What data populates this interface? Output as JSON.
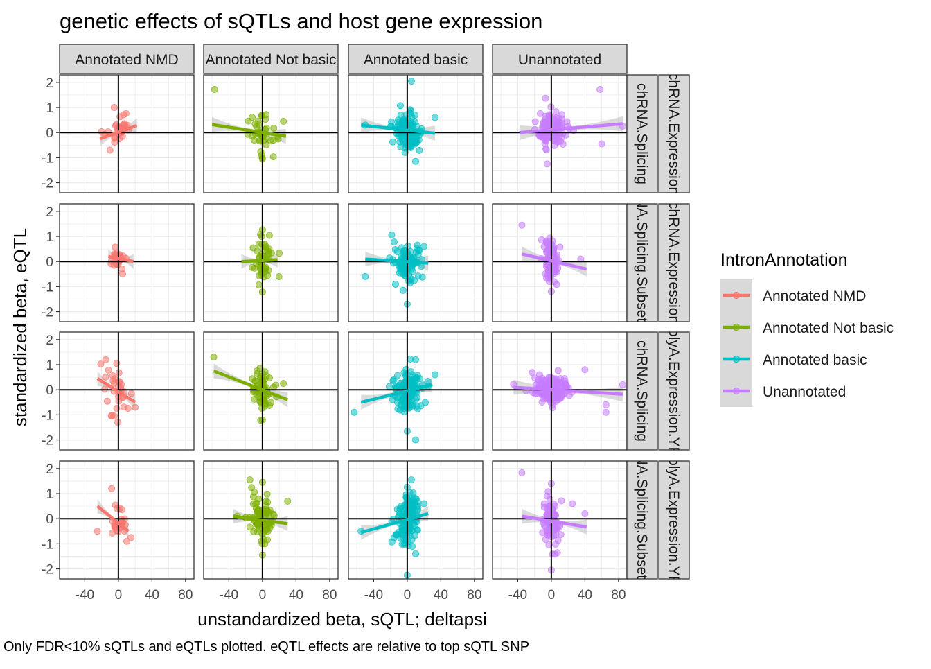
{
  "title": "genetic effects of sQTLs and host gene expression",
  "caption": "Only FDR<10% sQTLs and eQTLs plotted. eQTL effects are relative to top sQTL SNP",
  "xlabel": "unstandardized beta, sQTL; deltapsi",
  "ylabel": "standardized beta, eQTL",
  "legend": {
    "title": "IntronAnnotation",
    "items": [
      {
        "label": "Annotated NMD",
        "color": "#F8766D"
      },
      {
        "label": "Annotated Not basic",
        "color": "#7CAE00"
      },
      {
        "label": "Annotated basic",
        "color": "#00BFC4"
      },
      {
        "label": "Unannotated",
        "color": "#C77CFF"
      }
    ]
  },
  "chart_data": {
    "type": "scatter",
    "facet_columns": [
      "Annotated NMD",
      "Annotated Not basic",
      "Annotated basic",
      "Unannotated"
    ],
    "facet_rows": [
      {
        "strip1": "chRNA.Splicing",
        "strip2": "chRNA.Expression"
      },
      {
        "strip1": "chRNA.Splicing.Subset_YRI",
        "strip2": "chRNA.Expression"
      },
      {
        "strip1": "chRNA.Splicing",
        "strip2": "polyA.Expression.YRI"
      },
      {
        "strip1": "chRNA.Splicing.Subset_YRI",
        "strip2": "polyA.Expression.YRI"
      }
    ],
    "xlim": [
      -70,
      90
    ],
    "ylim": [
      -2.4,
      2.3
    ],
    "x_ticks": [
      -40,
      0,
      40,
      80
    ],
    "y_ticks": [
      -2,
      -1,
      0,
      1,
      2
    ],
    "grid": true,
    "legend_position": "right",
    "trend_lines": [
      [
        {
          "x": [
            -22,
            22
          ],
          "y": [
            -0.25,
            0.28
          ]
        },
        {
          "x": [
            -60,
            28
          ],
          "y": [
            0.32,
            -0.15
          ]
        },
        {
          "x": [
            -55,
            33
          ],
          "y": [
            0.3,
            -0.03
          ]
        },
        {
          "x": [
            -38,
            85
          ],
          "y": [
            0.0,
            0.35
          ]
        }
      ],
      [
        {
          "x": [
            -12,
            18
          ],
          "y": [
            0.2,
            0.0
          ]
        },
        {
          "x": [
            -25,
            18
          ],
          "y": [
            0.0,
            0.07
          ]
        },
        {
          "x": [
            -50,
            25
          ],
          "y": [
            0.1,
            -0.06
          ]
        },
        {
          "x": [
            -35,
            42
          ],
          "y": [
            0.3,
            -0.3
          ]
        }
      ],
      [
        {
          "x": [
            -25,
            20
          ],
          "y": [
            0.45,
            -0.5
          ]
        },
        {
          "x": [
            -58,
            30
          ],
          "y": [
            0.75,
            -0.4
          ]
        },
        {
          "x": [
            -55,
            30
          ],
          "y": [
            -0.5,
            0.2
          ]
        },
        {
          "x": [
            -45,
            85
          ],
          "y": [
            0.1,
            -0.18
          ]
        }
      ],
      [
        {
          "x": [
            -25,
            12
          ],
          "y": [
            0.5,
            -0.5
          ]
        },
        {
          "x": [
            -35,
            30
          ],
          "y": [
            0.1,
            -0.2
          ]
        },
        {
          "x": [
            -55,
            25
          ],
          "y": [
            -0.55,
            0.2
          ]
        },
        {
          "x": [
            -35,
            42
          ],
          "y": [
            0.1,
            -0.33
          ]
        }
      ]
    ],
    "scatter_spread": [
      [
        {
          "n": 30,
          "sx": 10,
          "sy": 0.35,
          "seed": 11,
          "extra": [
            [
              -5,
              1.0
            ],
            [
              -10,
              -0.7
            ]
          ]
        },
        {
          "n": 40,
          "sx": 10,
          "sy": 0.38,
          "seed": 12,
          "extra": [
            [
              -57,
              1.72
            ],
            [
              0,
              -1.05
            ],
            [
              25,
              0.45
            ]
          ]
        },
        {
          "n": 110,
          "sx": 11,
          "sy": 0.38,
          "seed": 13,
          "extra": [
            [
              5,
              2.05
            ],
            [
              -50,
              0.3
            ],
            [
              33,
              0.6
            ],
            [
              10,
              -1.15
            ]
          ]
        },
        {
          "n": 120,
          "sx": 12,
          "sy": 0.35,
          "seed": 14,
          "extra": [
            [
              58,
              1.72
            ],
            [
              -5,
              -1.25
            ],
            [
              85,
              0.25
            ],
            [
              60,
              -0.45
            ]
          ]
        }
      ],
      [
        {
          "n": 22,
          "sx": 6,
          "sy": 0.25,
          "seed": 21,
          "extra": [
            [
              5,
              -0.5
            ],
            [
              -5,
              -0.15
            ]
          ]
        },
        {
          "n": 45,
          "sx": 9,
          "sy": 0.42,
          "seed": 22,
          "extra": [
            [
              0,
              1.27
            ],
            [
              0,
              -1.22
            ],
            [
              20,
              0.33
            ]
          ]
        },
        {
          "n": 100,
          "sx": 10,
          "sy": 0.38,
          "seed": 23,
          "extra": [
            [
              -50,
              -0.6
            ],
            [
              0,
              -1.7
            ],
            [
              -5,
              -1.15
            ],
            [
              20,
              0.6
            ]
          ]
        },
        {
          "n": 110,
          "sx": 6,
          "sy": 0.4,
          "seed": 24,
          "extra": [
            [
              -35,
              1.45
            ],
            [
              0,
              -1.2
            ],
            [
              35,
              0.1
            ]
          ]
        }
      ],
      [
        {
          "n": 30,
          "sx": 10,
          "sy": 0.45,
          "seed": 31,
          "extra": [
            [
              -15,
              1.2
            ],
            [
              -2,
              1.05
            ],
            [
              -5,
              -1.05
            ],
            [
              20,
              -0.7
            ]
          ]
        },
        {
          "n": 60,
          "sx": 10,
          "sy": 0.4,
          "seed": 32,
          "extra": [
            [
              -58,
              1.3
            ],
            [
              0,
              -1.2
            ],
            [
              25,
              0.25
            ]
          ]
        },
        {
          "n": 130,
          "sx": 12,
          "sy": 0.42,
          "seed": 33,
          "extra": [
            [
              -63,
              -0.9
            ],
            [
              10,
              -2.0
            ],
            [
              0,
              -1.65
            ],
            [
              33,
              0.6
            ],
            [
              10,
              1.2
            ]
          ]
        },
        {
          "n": 170,
          "sx": 14,
          "sy": 0.28,
          "seed": 34,
          "extra": [
            [
              -45,
              0.22
            ],
            [
              85,
              0.2
            ],
            [
              65,
              -0.6
            ],
            [
              65,
              -0.9
            ],
            [
              40,
              0.8
            ]
          ]
        }
      ],
      [
        {
          "n": 25,
          "sx": 7,
          "sy": 0.38,
          "seed": 41,
          "extra": [
            [
              -8,
              1.2
            ],
            [
              -25,
              -0.5
            ],
            [
              10,
              -0.9
            ],
            [
              15,
              -0.75
            ]
          ]
        },
        {
          "n": 80,
          "sx": 10,
          "sy": 0.45,
          "seed": 42,
          "extra": [
            [
              -15,
              1.55
            ],
            [
              0,
              1.45
            ],
            [
              0,
              -1.45
            ],
            [
              30,
              0.7
            ],
            [
              -30,
              0.1
            ]
          ]
        },
        {
          "n": 150,
          "sx": 9,
          "sy": 0.5,
          "seed": 43,
          "extra": [
            [
              0,
              -2.25
            ],
            [
              -55,
              -0.5
            ],
            [
              10,
              -1.4
            ],
            [
              5,
              1.55
            ],
            [
              20,
              0.6
            ]
          ]
        },
        {
          "n": 100,
          "sx": 7,
          "sy": 0.45,
          "seed": 44,
          "extra": [
            [
              -35,
              1.83
            ],
            [
              0,
              -2.05
            ],
            [
              0,
              1.4
            ],
            [
              40,
              0.2
            ],
            [
              25,
              0.6
            ]
          ]
        }
      ]
    ]
  }
}
